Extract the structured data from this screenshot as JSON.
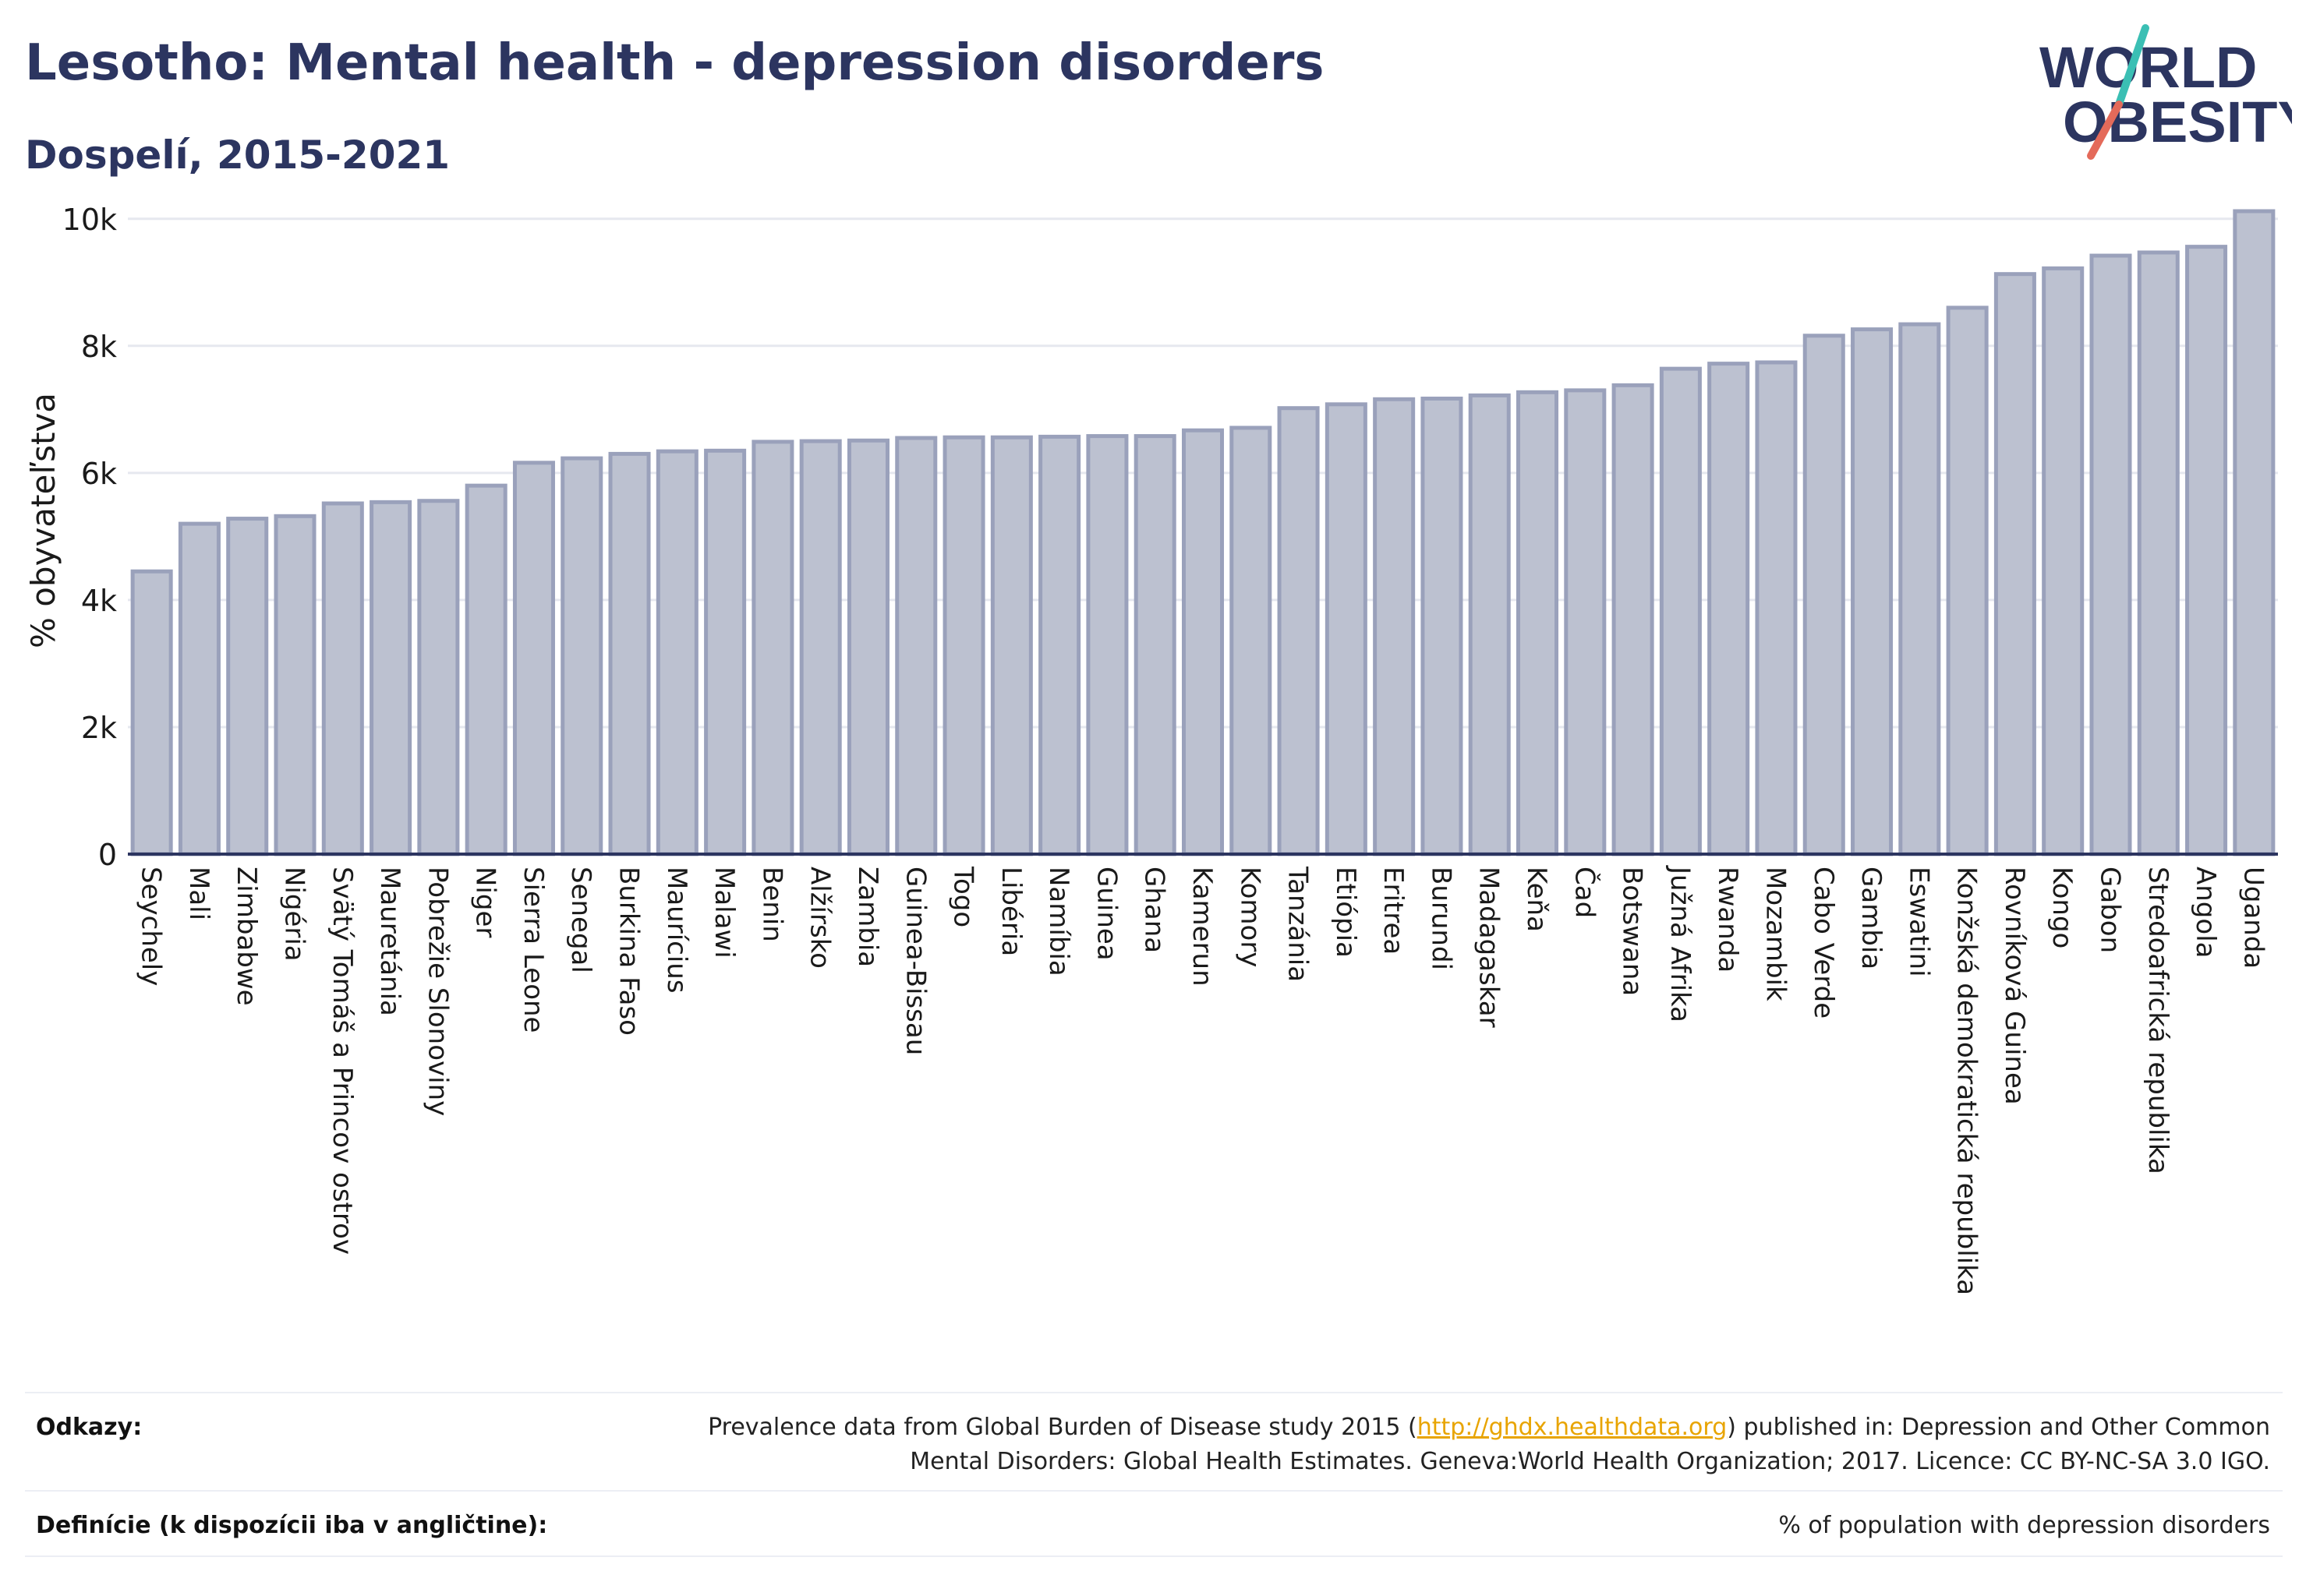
{
  "header": {
    "title": "Lesotho: Mental health - depression disorders",
    "subtitle": "Dospelí, 2015-2021"
  },
  "logo": {
    "line1": "WORLD",
    "line2": "OBESITY",
    "text_color": "#2c3560",
    "slash_colors": [
      "#3bbfb4",
      "#e46a5a"
    ]
  },
  "chart_data": {
    "type": "bar",
    "title": "",
    "xlabel": "",
    "ylabel": "% obyvateľstva",
    "ylim": [
      0,
      10500
    ],
    "yticks": [
      0,
      2000,
      4000,
      6000,
      8000,
      10000
    ],
    "ytick_labels": [
      "0",
      "2k",
      "4k",
      "6k",
      "8k",
      "10k"
    ],
    "grid": true,
    "bar_fill": "#bcc1d0",
    "bar_stroke": "#9aa1bb",
    "categories": [
      "Seychely",
      "Mali",
      "Zimbabwe",
      "Nigéria",
      "Svätý Tomáš a Princov ostrov",
      "Mauretánia",
      "Pobrežie Slonoviny",
      "Niger",
      "Sierra Leone",
      "Senegal",
      "Burkina Faso",
      "Maurícius",
      "Malawi",
      "Benin",
      "Alžírsko",
      "Zambia",
      "Guinea-Bissau",
      "Togo",
      "Libéria",
      "Namíbia",
      "Guinea",
      "Ghana",
      "Kamerun",
      "Komory",
      "Tanzánia",
      "Etiópia",
      "Eritrea",
      "Burundi",
      "Madagaskar",
      "Keňa",
      "Čad",
      "Botswana",
      "Južná Afrika",
      "Rwanda",
      "Mozambik",
      "Cabo Verde",
      "Gambia",
      "Eswatini",
      "Konžská demokratická republika",
      "Rovníková Guinea",
      "Kongo",
      "Gabon",
      "Stredoafrická republika",
      "Angola",
      "Uganda"
    ],
    "values": [
      4450,
      5200,
      5280,
      5320,
      5520,
      5540,
      5560,
      5800,
      6160,
      6230,
      6300,
      6340,
      6350,
      6490,
      6500,
      6510,
      6550,
      6560,
      6560,
      6570,
      6580,
      6580,
      6670,
      6710,
      7020,
      7080,
      7160,
      7170,
      7220,
      7270,
      7300,
      7380,
      7640,
      7720,
      7740,
      8160,
      8260,
      8340,
      8600,
      9130,
      9220,
      9420,
      9470,
      9560,
      10120
    ]
  },
  "footer": {
    "references_label": "Odkazy:",
    "references_text_before": "Prevalence data from Global Burden of Disease study 2015 (",
    "references_link": "http://ghdx.healthdata.org",
    "references_text_after": ") published in: Depression and Other Common Mental Disorders: Global Health Estimates. Geneva:World Health Organization; 2017. Licence: CC BY-NC-SA 3.0 IGO.",
    "definitions_label": "Definície (k dispozícii iba v angličtine):",
    "definitions_text": "% of population with depression disorders"
  }
}
